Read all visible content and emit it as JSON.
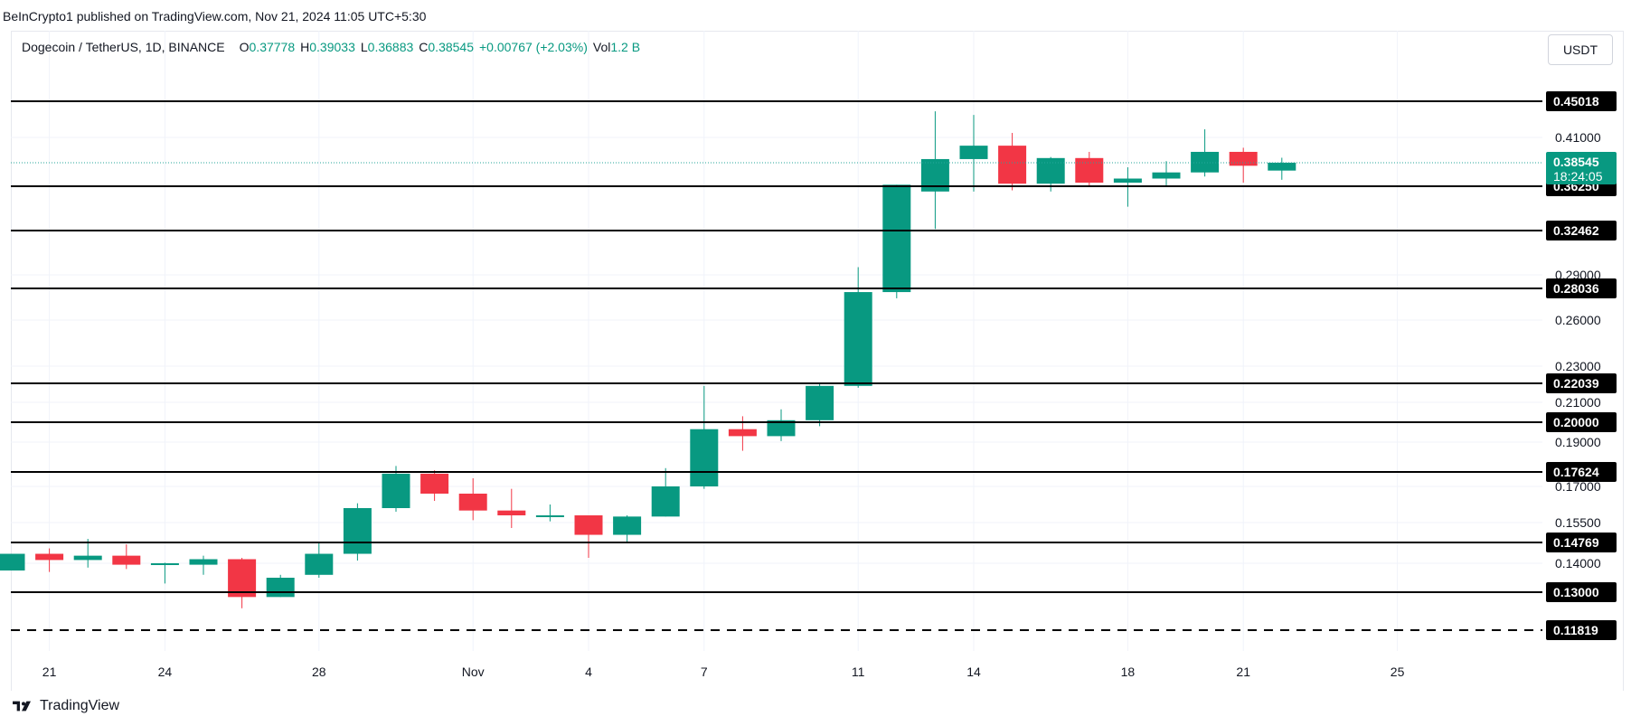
{
  "publisher_line": "BeInCrypto1 published on TradingView.com, Nov 21, 2024 11:05 UTC+5:30",
  "legend": {
    "symbol": "Dogecoin / TetherUS, 1D, BINANCE",
    "open_key": "O",
    "open": "0.37778",
    "high_key": "H",
    "high": "0.39033",
    "low_key": "L",
    "low": "0.36883",
    "close_key": "C",
    "close": "0.38545",
    "change": "+0.00767 (+2.03%)",
    "vol_key": "Vol",
    "vol": "1.2 B"
  },
  "currency_button": "USDT",
  "brand": "TradingView",
  "colors": {
    "up": "#089981",
    "down": "#f23645",
    "line": "#000000",
    "price_line": "#26a69a"
  },
  "chart_data": {
    "type": "candlestick",
    "title": "Dogecoin / TetherUS, 1D, BINANCE",
    "xlabel": "",
    "ylabel": "",
    "grid": true,
    "x_ticks": [
      {
        "day": 1,
        "label": "21"
      },
      {
        "day": 4,
        "label": "24"
      },
      {
        "day": 8,
        "label": "28"
      },
      {
        "day": 12,
        "label": "Nov"
      },
      {
        "day": 15,
        "label": "4"
      },
      {
        "day": 18,
        "label": "7"
      },
      {
        "day": 22,
        "label": "11"
      },
      {
        "day": 25,
        "label": "14"
      },
      {
        "day": 29,
        "label": "18"
      },
      {
        "day": 32,
        "label": "21"
      },
      {
        "day": 36,
        "label": "25"
      }
    ],
    "y_ticks": [
      "0.41000",
      "0.29000",
      "0.26000",
      "0.23000",
      "0.21000",
      "0.19000",
      "0.17000",
      "0.15500",
      "0.14000"
    ],
    "candles": [
      {
        "day": 0,
        "date": "Oct 20",
        "o": 0.1375,
        "h": 0.1435,
        "l": 0.1375,
        "c": 0.1435
      },
      {
        "day": 1,
        "date": "Oct 21",
        "o": 0.1435,
        "h": 0.1455,
        "l": 0.137,
        "c": 0.1412
      },
      {
        "day": 2,
        "date": "Oct 22",
        "o": 0.1412,
        "h": 0.149,
        "l": 0.1385,
        "c": 0.1428
      },
      {
        "day": 3,
        "date": "Oct 23",
        "o": 0.1428,
        "h": 0.147,
        "l": 0.138,
        "c": 0.1395
      },
      {
        "day": 4,
        "date": "Oct 24",
        "o": 0.1395,
        "h": 0.1402,
        "l": 0.133,
        "c": 0.14
      },
      {
        "day": 5,
        "date": "Oct 25",
        "o": 0.1395,
        "h": 0.1428,
        "l": 0.136,
        "c": 0.1415
      },
      {
        "day": 6,
        "date": "Oct 26",
        "o": 0.1415,
        "h": 0.142,
        "l": 0.125,
        "c": 0.1285
      },
      {
        "day": 7,
        "date": "Oct 27",
        "o": 0.1285,
        "h": 0.136,
        "l": 0.1285,
        "c": 0.135
      },
      {
        "day": 8,
        "date": "Oct 28",
        "o": 0.136,
        "h": 0.1475,
        "l": 0.135,
        "c": 0.1435
      },
      {
        "day": 9,
        "date": "Oct 29",
        "o": 0.1435,
        "h": 0.163,
        "l": 0.141,
        "c": 0.161
      },
      {
        "day": 10,
        "date": "Oct 30",
        "o": 0.161,
        "h": 0.179,
        "l": 0.1595,
        "c": 0.1755
      },
      {
        "day": 11,
        "date": "Oct 31",
        "o": 0.1755,
        "h": 0.177,
        "l": 0.164,
        "c": 0.167
      },
      {
        "day": 12,
        "date": "Nov 1",
        "o": 0.167,
        "h": 0.1735,
        "l": 0.156,
        "c": 0.16
      },
      {
        "day": 13,
        "date": "Nov 2",
        "o": 0.16,
        "h": 0.169,
        "l": 0.153,
        "c": 0.158
      },
      {
        "day": 14,
        "date": "Nov 3",
        "o": 0.158,
        "h": 0.1625,
        "l": 0.1555,
        "c": 0.158
      },
      {
        "day": 15,
        "date": "Nov 4",
        "o": 0.158,
        "h": 0.158,
        "l": 0.142,
        "c": 0.1505
      },
      {
        "day": 16,
        "date": "Nov 5",
        "o": 0.1505,
        "h": 0.158,
        "l": 0.148,
        "c": 0.1575
      },
      {
        "day": 17,
        "date": "Nov 6",
        "o": 0.1575,
        "h": 0.178,
        "l": 0.1575,
        "c": 0.17
      },
      {
        "day": 18,
        "date": "Nov 7",
        "o": 0.17,
        "h": 0.219,
        "l": 0.169,
        "c": 0.1965
      },
      {
        "day": 19,
        "date": "Nov 8",
        "o": 0.1965,
        "h": 0.203,
        "l": 0.186,
        "c": 0.193
      },
      {
        "day": 20,
        "date": "Nov 9",
        "o": 0.193,
        "h": 0.2065,
        "l": 0.1905,
        "c": 0.201
      },
      {
        "day": 21,
        "date": "Nov 10",
        "o": 0.201,
        "h": 0.22,
        "l": 0.198,
        "c": 0.219
      },
      {
        "day": 22,
        "date": "Nov 11",
        "o": 0.219,
        "h": 0.296,
        "l": 0.218,
        "c": 0.278
      },
      {
        "day": 23,
        "date": "Nov 12",
        "o": 0.278,
        "h": 0.364,
        "l": 0.274,
        "c": 0.364
      },
      {
        "day": 24,
        "date": "Nov 13",
        "o": 0.358,
        "h": 0.439,
        "l": 0.326,
        "c": 0.389
      },
      {
        "day": 25,
        "date": "Nov 14",
        "o": 0.389,
        "h": 0.435,
        "l": 0.358,
        "c": 0.402
      },
      {
        "day": 26,
        "date": "Nov 15",
        "o": 0.402,
        "h": 0.415,
        "l": 0.359,
        "c": 0.365
      },
      {
        "day": 27,
        "date": "Nov 16",
        "o": 0.365,
        "h": 0.391,
        "l": 0.358,
        "c": 0.39
      },
      {
        "day": 28,
        "date": "Nov 17",
        "o": 0.39,
        "h": 0.396,
        "l": 0.362,
        "c": 0.366
      },
      {
        "day": 29,
        "date": "Nov 18",
        "o": 0.366,
        "h": 0.381,
        "l": 0.345,
        "c": 0.37
      },
      {
        "day": 30,
        "date": "Nov 19",
        "o": 0.37,
        "h": 0.387,
        "l": 0.363,
        "c": 0.376
      },
      {
        "day": 31,
        "date": "Nov 20",
        "o": 0.376,
        "h": 0.419,
        "l": 0.372,
        "c": 0.396
      },
      {
        "day": 32,
        "date": "Nov 21",
        "o": 0.396,
        "h": 0.4,
        "l": 0.366,
        "c": 0.3825
      },
      {
        "day": 33,
        "date": "Nov 22",
        "o": 0.3778,
        "h": 0.3903,
        "l": 0.3688,
        "c": 0.3855
      }
    ],
    "horizontal_levels": [
      {
        "value": "0.45018",
        "style": "solid"
      },
      {
        "value": "0.36250",
        "style": "solid"
      },
      {
        "value": "0.32462",
        "style": "solid"
      },
      {
        "value": "0.28036",
        "style": "solid"
      },
      {
        "value": "0.22039",
        "style": "solid"
      },
      {
        "value": "0.20000",
        "style": "solid"
      },
      {
        "value": "0.17624",
        "style": "solid"
      },
      {
        "value": "0.14769",
        "style": "solid"
      },
      {
        "value": "0.13000",
        "style": "solid"
      },
      {
        "value": "0.11819",
        "style": "dashed"
      }
    ],
    "current_price": {
      "value": "0.38545",
      "countdown": "18:24:05"
    }
  }
}
